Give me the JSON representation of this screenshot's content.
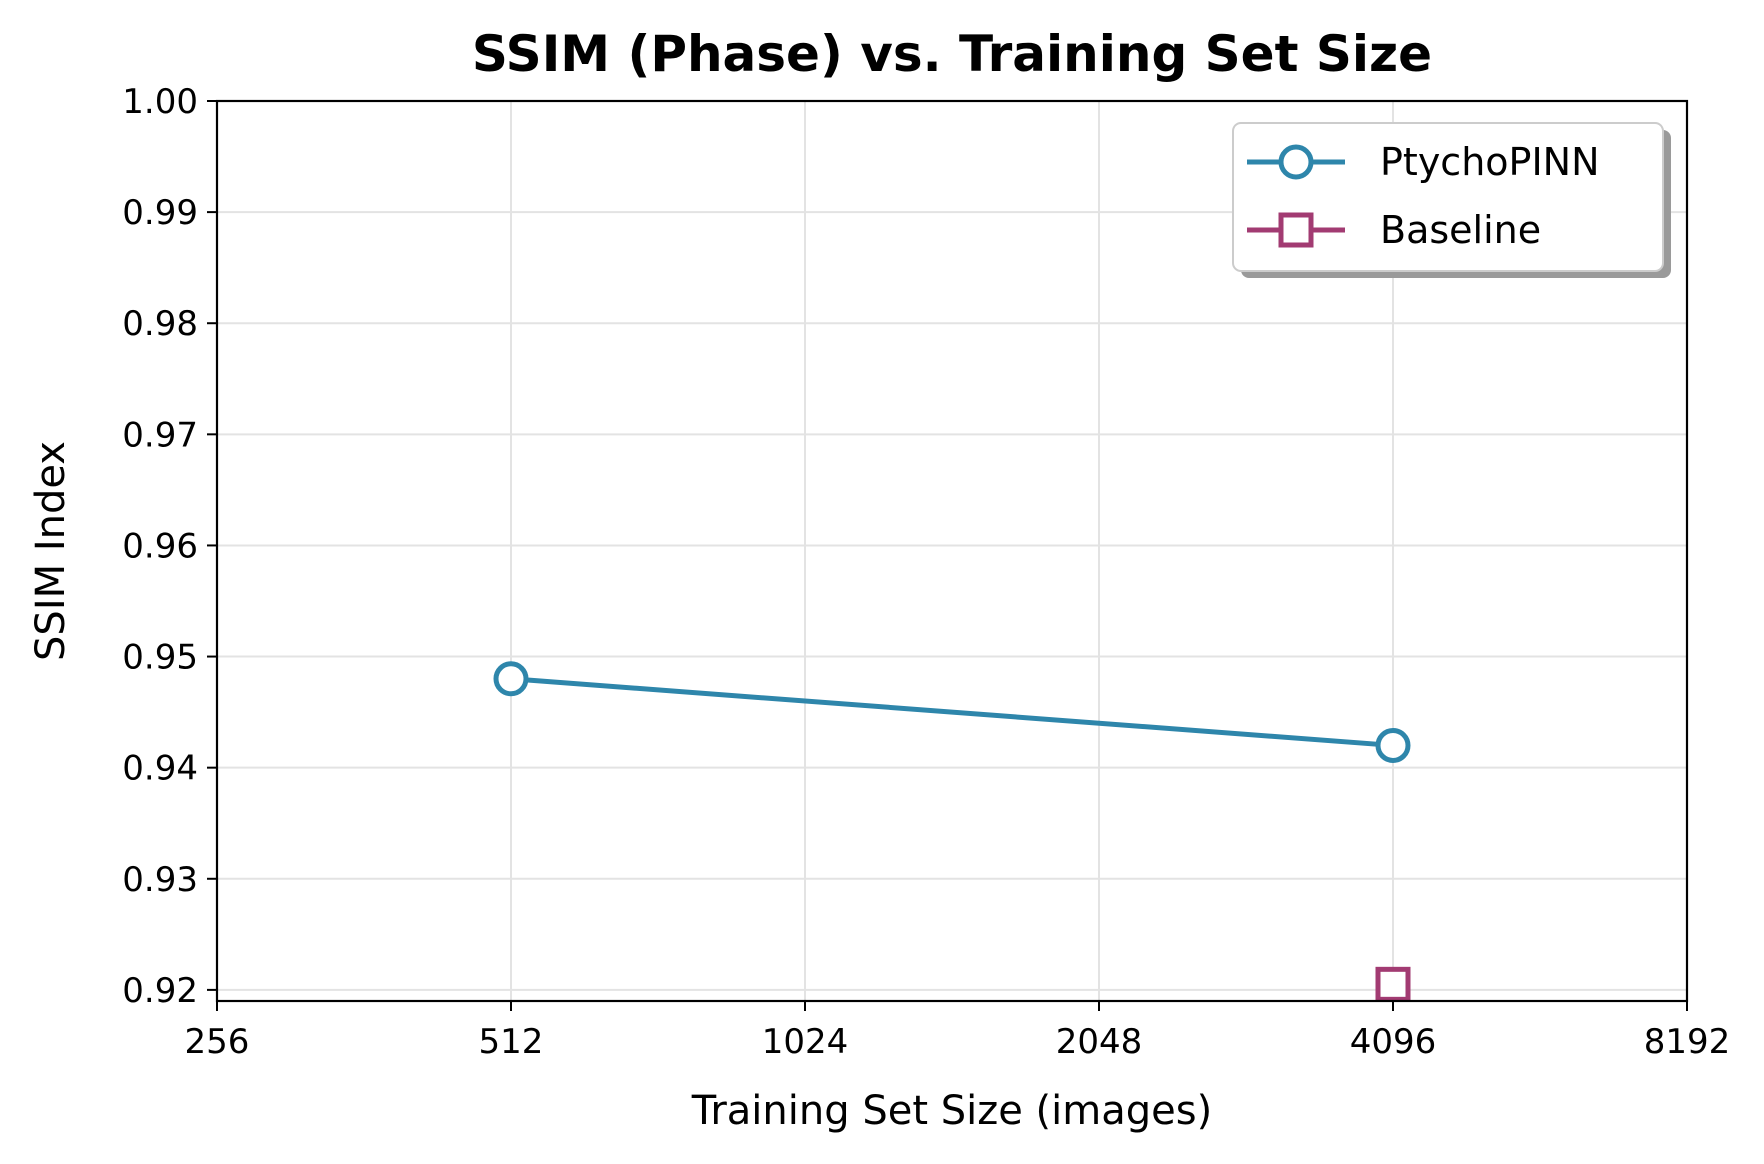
{
  "chart_data": {
    "type": "line",
    "title": "SSIM (Phase) vs. Training Set Size",
    "xlabel": "Training Set Size (images)",
    "ylabel": "SSIM Index",
    "x_scale": "log2",
    "xlim": [
      256,
      8192
    ],
    "ylim": [
      0.919,
      1.0
    ],
    "x_ticks": [
      256,
      512,
      1024,
      2048,
      4096,
      8192
    ],
    "x_tick_labels": [
      "256",
      "512",
      "1024",
      "2048",
      "4096",
      "8192"
    ],
    "y_ticks": [
      0.92,
      0.93,
      0.94,
      0.95,
      0.96,
      0.97,
      0.98,
      0.99,
      1.0
    ],
    "y_tick_labels": [
      "0.92",
      "0.93",
      "0.94",
      "0.95",
      "0.96",
      "0.97",
      "0.98",
      "0.99",
      "1.00"
    ],
    "grid": true,
    "legend_position": "top-right",
    "series": [
      {
        "name": "PtychoPINN",
        "color": "#2E86AB",
        "marker": "circle",
        "x": [
          512,
          4096
        ],
        "y": [
          0.948,
          0.942
        ]
      },
      {
        "name": "Baseline",
        "color": "#A23B72",
        "marker": "square",
        "x": [
          4096
        ],
        "y": [
          0.9205
        ]
      }
    ]
  }
}
